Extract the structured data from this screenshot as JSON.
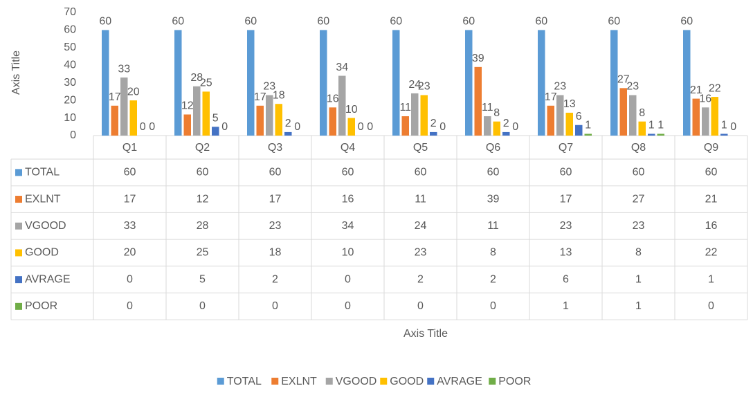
{
  "chart_data": {
    "type": "bar",
    "x_label": "Axis Title",
    "y_label": "Axis Title",
    "categories": [
      "Q1",
      "Q2",
      "Q3",
      "Q4",
      "Q5",
      "Q6",
      "Q7",
      "Q8",
      "Q9"
    ],
    "series": [
      {
        "name": "TOTAL",
        "color": "#5b9bd5",
        "values": [
          60,
          60,
          60,
          60,
          60,
          60,
          60,
          60,
          60
        ]
      },
      {
        "name": "EXLNT",
        "color": "#ed7d31",
        "values": [
          17,
          12,
          17,
          16,
          11,
          39,
          17,
          27,
          21
        ]
      },
      {
        "name": "VGOOD",
        "color": "#a5a5a5",
        "values": [
          33,
          28,
          23,
          34,
          24,
          11,
          23,
          23,
          16
        ]
      },
      {
        "name": "GOOD",
        "color": "#ffc000",
        "values": [
          20,
          25,
          18,
          10,
          23,
          8,
          13,
          8,
          22
        ]
      },
      {
        "name": "AVRAGE",
        "color": "#4472c4",
        "values": [
          0,
          5,
          2,
          0,
          2,
          2,
          6,
          1,
          1
        ]
      },
      {
        "name": "POOR",
        "color": "#70ad47",
        "values": [
          0,
          0,
          0,
          0,
          0,
          0,
          1,
          1,
          0
        ]
      }
    ],
    "ylim": [
      0,
      70
    ],
    "yticks": [
      0,
      10,
      20,
      30,
      40,
      50,
      60,
      70
    ],
    "grid": false,
    "legend": "bottom"
  }
}
